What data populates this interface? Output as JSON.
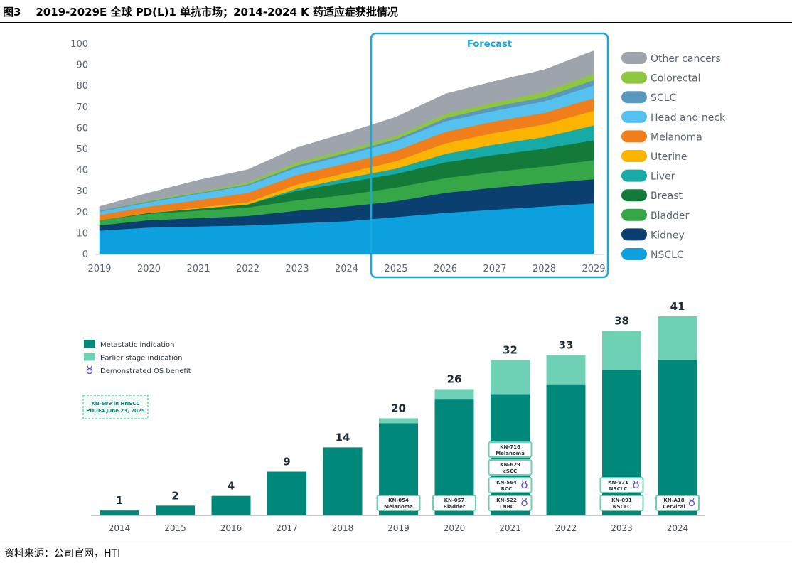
{
  "header": {
    "figure_no": "图3",
    "title": "2019-2029E 全球 PD(L)1 单抗市场；2014-2024 K 药适应症获批情况"
  },
  "source": "资料来源：公司官网，HTI",
  "chart_data": [
    {
      "type": "area",
      "stacked": true,
      "forecast_label": "Forecast",
      "forecast_range": [
        "2025",
        "2029"
      ],
      "x": [
        "2019",
        "2020",
        "2021",
        "2022",
        "2023",
        "2024",
        "2025",
        "2026",
        "2027",
        "2028",
        "2029"
      ],
      "ylim": [
        0,
        100
      ],
      "yticks": [
        0,
        10,
        20,
        30,
        40,
        50,
        60,
        70,
        80,
        90,
        100
      ],
      "legend_position": "right",
      "series": [
        {
          "name": "NSCLC",
          "color": "#0ca0df",
          "values": [
            11,
            12.5,
            13,
            13.5,
            14.5,
            15.5,
            17.5,
            19.5,
            21,
            22.5,
            24
          ]
        },
        {
          "name": "Kidney",
          "color": "#0a3f6f",
          "values": [
            2.5,
            3.5,
            4,
            4.5,
            6,
            7,
            7.5,
            9.5,
            10.5,
            11,
            11.5
          ]
        },
        {
          "name": "Bladder",
          "color": "#35a746",
          "values": [
            2.5,
            3,
            3.5,
            4,
            5,
            5.5,
            6.5,
            7,
            7.5,
            8,
            9
          ]
        },
        {
          "name": "Breast",
          "color": "#137a3a",
          "values": [
            0,
            0.5,
            1,
            1.5,
            4.5,
            6,
            6.5,
            7.5,
            8,
            8.5,
            9.5
          ]
        },
        {
          "name": "Liver",
          "color": "#18aaa4",
          "values": [
            0,
            0,
            0,
            0,
            1,
            2,
            2.5,
            4,
            5,
            5.5,
            7
          ]
        },
        {
          "name": "Uterine",
          "color": "#fbb400",
          "values": [
            0,
            0,
            0.5,
            1,
            2,
            2.5,
            3.5,
            5,
            5.5,
            6,
            7
          ]
        },
        {
          "name": "Melanoma",
          "color": "#f07f1b",
          "values": [
            2.5,
            3,
            3.5,
            4.5,
            4.5,
            4.5,
            5,
            5.5,
            5.5,
            5.5,
            6
          ]
        },
        {
          "name": "Head and neck",
          "color": "#54c1ee",
          "values": [
            1.5,
            2,
            3,
            3.5,
            3.5,
            4,
            4.5,
            5,
            5,
            5.5,
            6
          ]
        },
        {
          "name": "SCLC",
          "color": "#5b98bd",
          "values": [
            0.5,
            0.5,
            0.5,
            0.5,
            1,
            1,
            1,
            1.5,
            2,
            2,
            2.5
          ]
        },
        {
          "name": "Colorectal",
          "color": "#8ec640",
          "values": [
            0,
            0.5,
            0.5,
            1,
            1.5,
            1.5,
            1.5,
            2,
            2,
            2.5,
            3
          ]
        },
        {
          "name": "Other cancers",
          "color": "#9ea4ac",
          "values": [
            2,
            3.5,
            5.5,
            6,
            7,
            8,
            9,
            9.5,
            10,
            10.5,
            11
          ]
        }
      ]
    },
    {
      "type": "bar",
      "stacked": true,
      "categories": [
        "2014",
        "2015",
        "2016",
        "2017",
        "2018",
        "2019",
        "2020",
        "2021",
        "2022",
        "2023",
        "2024"
      ],
      "totals": [
        1,
        2,
        4,
        9,
        14,
        20,
        26,
        32,
        33,
        38,
        41
      ],
      "series": [
        {
          "name": "Metastatic indication",
          "color": "#00897b",
          "values": [
            1,
            2,
            4,
            9,
            14,
            19,
            24,
            25,
            27,
            30,
            32
          ]
        },
        {
          "name": "Earlier stage indication",
          "color": "#6ed1b6",
          "values": [
            0,
            0,
            0,
            0,
            0,
            1,
            2,
            7,
            6,
            8,
            9
          ]
        }
      ],
      "legend": [
        "Metastatic indication",
        "Earlier stage indication",
        "Demonstrated OS benefit"
      ],
      "pending_note": [
        "KN-689 in HNSCC",
        "PDUFA June 23, 2025"
      ],
      "trial_labels": [
        {
          "year": "2019",
          "lines": [
            "KN-054",
            "Melanoma"
          ],
          "os": false
        },
        {
          "year": "2020",
          "lines": [
            "KN-057",
            "Bladder"
          ],
          "os": false
        },
        {
          "year": "2021",
          "lines": [
            "KN-522",
            "TNBC"
          ],
          "os": true
        },
        {
          "year": "2021",
          "lines": [
            "KN-564",
            "RCC"
          ],
          "os": true
        },
        {
          "year": "2021",
          "lines": [
            "KN-629",
            "cSCC"
          ],
          "os": false
        },
        {
          "year": "2021",
          "lines": [
            "KN-716",
            "Melanoma"
          ],
          "os": false
        },
        {
          "year": "2023",
          "lines": [
            "KN-091",
            "NSCLC"
          ],
          "os": false
        },
        {
          "year": "2023",
          "lines": [
            "KN-671",
            "NSCLC"
          ],
          "os": true
        },
        {
          "year": "2024",
          "lines": [
            "KN-A18",
            "Cervical"
          ],
          "os": true
        }
      ]
    }
  ]
}
